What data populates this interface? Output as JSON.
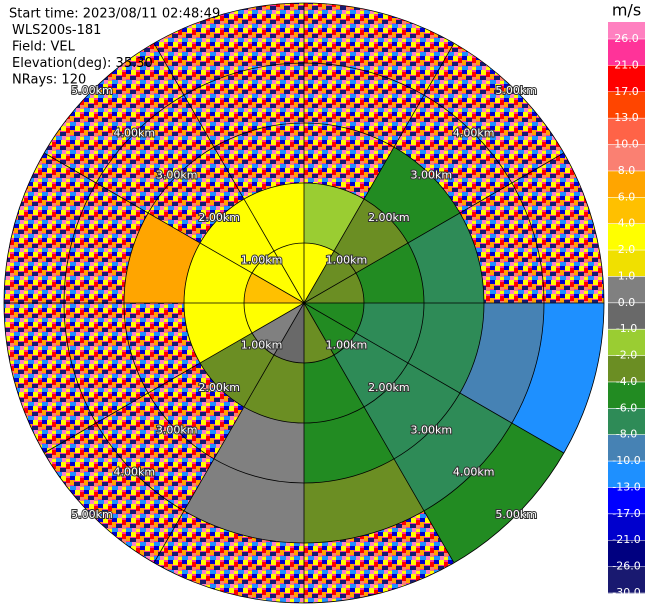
{
  "chart_data": {
    "type": "ppi",
    "info": [
      "Start time: 2023/08/11 02:48:49",
      "WLS200s-181",
      "Field: VEL",
      "Elevation(deg): 35.30",
      "NRays: 120"
    ],
    "rlim": [
      0,
      5
    ],
    "range_rings": [
      {
        "value": 1,
        "label": "1.00km"
      },
      {
        "value": 2,
        "label": "2.00km"
      },
      {
        "value": 3,
        "label": "3.00km"
      },
      {
        "value": 4,
        "label": "4.00km"
      },
      {
        "value": 5,
        "label": "5.00km"
      }
    ],
    "azimuth_edges": [
      0,
      30,
      60,
      90,
      120,
      150,
      180,
      210,
      240,
      270,
      300,
      330,
      360
    ],
    "range_edges": [
      0,
      1,
      2,
      3,
      4,
      5
    ],
    "values": [
      [
        3,
        -2,
        null,
        null,
        null
      ],
      [
        -3,
        -3,
        -5,
        null,
        null
      ],
      [
        -3,
        -5,
        -7,
        null,
        null
      ],
      [
        -5,
        -7,
        -7,
        -9,
        -11
      ],
      [
        -5,
        -7,
        -7,
        -7,
        -5
      ],
      [
        -3,
        -5,
        -5,
        -3,
        null
      ],
      [
        -0.5,
        -3,
        0.5,
        0.5,
        null
      ],
      [
        0.5,
        -3,
        null,
        null,
        null
      ],
      [
        3,
        3,
        null,
        null,
        null
      ],
      [
        5,
        3,
        7,
        null,
        null
      ],
      [
        3,
        3,
        null,
        null,
        null
      ],
      [
        3,
        3,
        null,
        null,
        null
      ]
    ],
    "colorbar": {
      "unit": "m/s",
      "over_color": "#ff80c0",
      "ticks": [
        {
          "value": 26,
          "label": "26.0"
        },
        {
          "value": 21,
          "label": "21.0"
        },
        {
          "value": 17,
          "label": "17.0"
        },
        {
          "value": 13,
          "label": "13.0"
        },
        {
          "value": 10,
          "label": "10.0"
        },
        {
          "value": 8,
          "label": "8.0"
        },
        {
          "value": 6,
          "label": "6.0"
        },
        {
          "value": 4,
          "label": "4.0"
        },
        {
          "value": 2,
          "label": "2.0"
        },
        {
          "value": 1,
          "label": "1.0"
        },
        {
          "value": 0,
          "label": "0.0"
        },
        {
          "value": -1,
          "label": "-1.0"
        },
        {
          "value": -2,
          "label": "-2.0"
        },
        {
          "value": -4,
          "label": "-4.0"
        },
        {
          "value": -6,
          "label": "-6.0"
        },
        {
          "value": -8,
          "label": "-8.0"
        },
        {
          "value": -10,
          "label": "-10.0"
        },
        {
          "value": -13,
          "label": "-13.0"
        },
        {
          "value": -17,
          "label": "-17.0"
        },
        {
          "value": -21,
          "label": "-21.0"
        },
        {
          "value": -26,
          "label": "-26.0"
        },
        {
          "value": -30,
          "label": "-30.0"
        }
      ],
      "colors": [
        "#ff3399",
        "#ff0000",
        "#ff4500",
        "#ff6347",
        "#fa8072",
        "#ffa500",
        "#ffc000",
        "#ffff00",
        "#f0e000",
        "#808080",
        "#696969",
        "#9acd32",
        "#6b8e23",
        "#228b22",
        "#2e8b57",
        "#4682b4",
        "#1e90ff",
        "#0000ff",
        "#0000cd",
        "#000080",
        "#191970"
      ]
    }
  }
}
